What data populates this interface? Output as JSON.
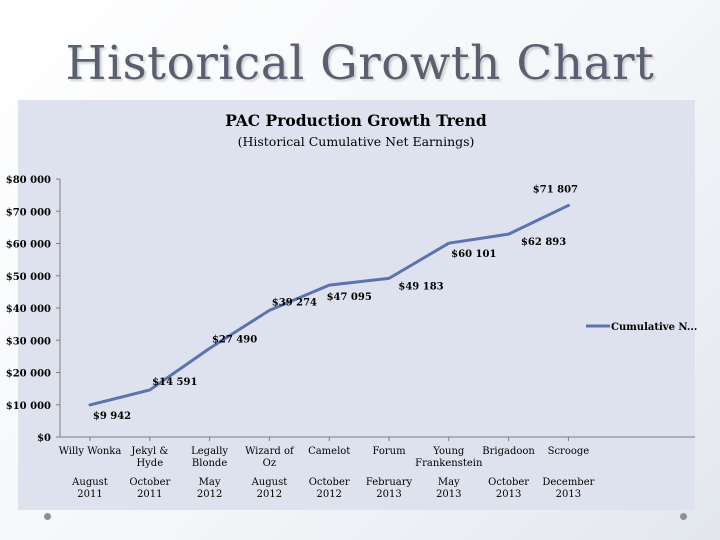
{
  "slide": {
    "title": "Historical Growth Chart"
  },
  "chart_data": {
    "type": "line",
    "title": "PAC Production Growth Trend",
    "subtitle": "(Historical Cumulative Net Earnings)",
    "xlabel": "",
    "ylabel": "",
    "ylim": [
      0,
      80000
    ],
    "yticks": [
      0,
      10000,
      20000,
      30000,
      40000,
      50000,
      60000,
      70000,
      80000
    ],
    "ytick_labels": [
      "$0",
      "$10 000",
      "$20 000",
      "$30 000",
      "$40 000",
      "$50 000",
      "$60 000",
      "$70 000",
      "$80 000"
    ],
    "grid": false,
    "legend_position": "right",
    "line_color": "#5b74b0",
    "categories": [
      {
        "name": [
          "Willy Wonka"
        ],
        "date": [
          "August",
          "2011"
        ]
      },
      {
        "name": [
          "Jekyl &",
          "Hyde"
        ],
        "date": [
          "October",
          "2011"
        ]
      },
      {
        "name": [
          "Legally",
          "Blonde"
        ],
        "date": [
          "May",
          "2012"
        ]
      },
      {
        "name": [
          "Wizard of",
          "Oz"
        ],
        "date": [
          "August",
          "2012"
        ]
      },
      {
        "name": [
          "Camelot"
        ],
        "date": [
          "October",
          "2012"
        ]
      },
      {
        "name": [
          "Forum"
        ],
        "date": [
          "February",
          "2013"
        ]
      },
      {
        "name": [
          "Young",
          "Frankenstein"
        ],
        "date": [
          "May",
          "2013"
        ]
      },
      {
        "name": [
          "Brigadoon"
        ],
        "date": [
          "October",
          "2013"
        ]
      },
      {
        "name": [
          "Scrooge"
        ],
        "date": [
          "December",
          "2013"
        ]
      }
    ],
    "series": [
      {
        "name": "Cumulative N...",
        "points": [
          {
            "value": 9942,
            "label": "$9 942"
          },
          {
            "value": 14591,
            "label": "$14 591"
          },
          {
            "value": 27490,
            "label": "$27 490"
          },
          {
            "value": 39274,
            "label": "$39 274"
          },
          {
            "value": 47095,
            "label": "$47 095"
          },
          {
            "value": 49183,
            "label": "$49 183"
          },
          {
            "value": 60101,
            "label": "$60 101"
          },
          {
            "value": 62893,
            "label": "$62 893"
          },
          {
            "value": 71807,
            "label": "$71 807"
          }
        ]
      }
    ]
  }
}
